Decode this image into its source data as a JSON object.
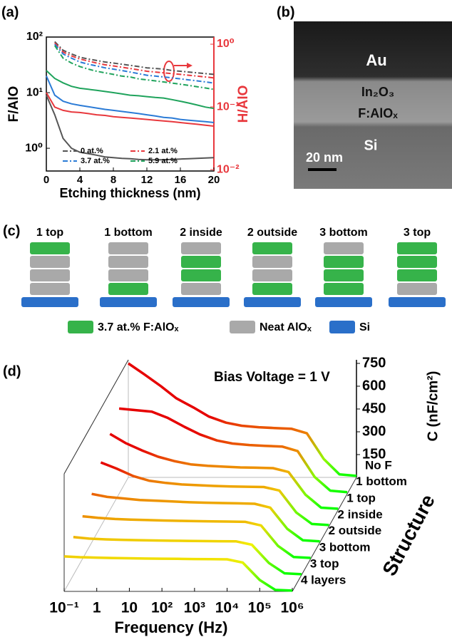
{
  "chart_data": [
    {
      "type": "line",
      "panel_label": "(a)",
      "xlabel": "Etching thickness (nm)",
      "ylabel": "F/AlO",
      "y2label": "H/AlO",
      "log_y": true,
      "log_y2": true,
      "legend": "lower",
      "x": [
        0,
        1,
        2,
        3,
        4,
        5,
        6,
        7,
        8,
        9,
        10,
        11,
        12,
        13,
        14,
        15,
        16,
        17,
        18,
        19,
        20
      ],
      "xlim": [
        0,
        20
      ],
      "xticks": [
        0,
        4,
        8,
        12,
        16,
        20
      ],
      "ylim": [
        0.39,
        100
      ],
      "yticks": [
        {
          "value": 1,
          "label": "10⁰"
        },
        {
          "value": 10,
          "label": "10¹"
        },
        {
          "value": 100,
          "label": "10²"
        }
      ],
      "y2lim": [
        0.0095,
        1.3
      ],
      "y2ticks": [
        {
          "value": 0.01,
          "label": "10⁻²"
        },
        {
          "value": 0.1,
          "label": "10⁻¹"
        },
        {
          "value": 1,
          "label": "10⁰"
        }
      ],
      "series": [
        {
          "color": "#555555",
          "values": [
            9,
            4,
            1.5,
            1.0,
            0.85,
            0.8,
            0.75,
            0.7,
            0.68,
            0.66,
            0.65,
            0.63,
            0.62,
            0.62,
            0.62,
            0.63,
            0.64,
            0.65,
            0.66,
            0.67,
            0.68
          ]
        },
        {
          "color": "#e8383d",
          "values": [
            10,
            5.5,
            4.8,
            4.5,
            4.4,
            4.2,
            4,
            3.9,
            3.7,
            3.6,
            3.5,
            3.4,
            3.3,
            3.2,
            3.1,
            3,
            2.9,
            2.8,
            2.7,
            2.6,
            2.5
          ]
        },
        {
          "color": "#2b7bd6",
          "values": [
            20,
            9,
            7,
            6.3,
            5.9,
            5.6,
            5.3,
            5,
            4.8,
            4.6,
            4.4,
            4.2,
            4,
            3.8,
            3.6,
            3.5,
            3.3,
            3.2,
            3.1,
            3,
            2.9
          ]
        },
        {
          "color": "#1fa35c",
          "values": [
            25,
            18,
            15,
            13,
            12,
            11.5,
            11,
            10.5,
            10,
            9.5,
            9,
            8.8,
            8.5,
            8.2,
            8,
            7.5,
            7,
            6.5,
            6,
            5.5,
            5.2
          ]
        },
        {
          "name": "0 at.%",
          "color": "#555555",
          "axis": "y2",
          "dash": "dash-dot",
          "values": [
            null,
            1.1,
            0.8,
            0.7,
            0.62,
            0.58,
            0.55,
            0.52,
            0.5,
            0.48,
            0.46,
            0.44,
            0.42,
            0.41,
            0.4,
            0.38,
            0.37,
            0.36,
            0.35,
            0.34,
            0.33
          ]
        },
        {
          "name": "2.1 at.%",
          "color": "#e8383d",
          "axis": "y2",
          "dash": "dash-dot",
          "values": [
            null,
            1.05,
            0.75,
            0.65,
            0.58,
            0.54,
            0.5,
            0.47,
            0.45,
            0.43,
            0.41,
            0.39,
            0.37,
            0.36,
            0.35,
            0.34,
            0.33,
            0.32,
            0.31,
            0.3,
            0.29
          ]
        },
        {
          "name": "3.7 at.%",
          "color": "#2b7bd6",
          "axis": "y2",
          "dash": "dash-dot",
          "values": [
            null,
            1.0,
            0.7,
            0.6,
            0.52,
            0.48,
            0.45,
            0.42,
            0.4,
            0.38,
            0.36,
            0.34,
            0.32,
            0.31,
            0.3,
            0.29,
            0.28,
            0.27,
            0.26,
            0.25,
            0.24
          ]
        },
        {
          "name": "5.9 at.%",
          "color": "#1fa35c",
          "axis": "y2",
          "dash": "dash-dot",
          "values": [
            null,
            0.95,
            0.6,
            0.5,
            0.44,
            0.4,
            0.37,
            0.35,
            0.33,
            0.31,
            0.3,
            0.28,
            0.27,
            0.26,
            0.25,
            0.24,
            0.23,
            0.22,
            0.21,
            0.2,
            0.19
          ]
        }
      ]
    },
    {
      "type": "waterfall",
      "panel_label": "(d)",
      "annotation": "Bias Voltage = 1 V",
      "xlabel": "Frequency (Hz)",
      "ylabel": "C (nF/cm²)",
      "zlabel": "Structure",
      "log_x": true,
      "x": [
        0.1,
        0.3,
        1,
        3,
        10,
        30,
        100,
        300,
        1000,
        3000,
        10000,
        30000,
        100000,
        300000,
        1000000
      ],
      "xlim": [
        0.1,
        1000000
      ],
      "xticks": [
        {
          "value": 0.1,
          "label": "10⁻¹"
        },
        1,
        10,
        {
          "value": 100,
          "label": "10²"
        },
        {
          "value": 1000,
          "label": "10³"
        },
        {
          "value": 10000,
          "label": "10⁴"
        },
        {
          "value": 100000,
          "label": "10⁵"
        },
        {
          "value": 1000000,
          "label": "10⁶"
        }
      ],
      "ylim": [
        0,
        750
      ],
      "yticks": [
        150,
        300,
        450,
        600,
        750
      ],
      "series": [
        {
          "name": "No F",
          "values": [
            750,
            680,
            600,
            520,
            460,
            400,
            360,
            340,
            330,
            325,
            320,
            290,
            120,
            20,
            10
          ]
        },
        {
          "name": "1 bottom",
          "values": [
            560,
            550,
            540,
            500,
            440,
            390,
            350,
            330,
            320,
            315,
            310,
            280,
            110,
            20,
            10
          ]
        },
        {
          "name": "1 top",
          "values": [
            500,
            440,
            390,
            350,
            320,
            300,
            290,
            285,
            280,
            278,
            275,
            250,
            100,
            15,
            8
          ]
        },
        {
          "name": "2 inside",
          "values": [
            420,
            380,
            330,
            300,
            285,
            275,
            270,
            265,
            262,
            260,
            258,
            235,
            90,
            15,
            8
          ]
        },
        {
          "name": "2 outside",
          "values": [
            320,
            300,
            290,
            280,
            275,
            270,
            265,
            262,
            260,
            258,
            255,
            230,
            90,
            15,
            8
          ]
        },
        {
          "name": "3 bottom",
          "values": [
            280,
            270,
            262,
            258,
            255,
            252,
            250,
            248,
            246,
            245,
            243,
            220,
            85,
            12,
            6
          ]
        },
        {
          "name": "3 top",
          "values": [
            250,
            240,
            235,
            232,
            230,
            228,
            226,
            225,
            224,
            223,
            222,
            200,
            80,
            12,
            6
          ]
        },
        {
          "name": "4 layers",
          "values": [
            230,
            225,
            222,
            220,
            218,
            216,
            215,
            214,
            213,
            212,
            211,
            190,
            75,
            10,
            5
          ]
        }
      ]
    }
  ],
  "tem_image": {
    "panel_label": "(b)",
    "layers": [
      "Au",
      "In₂O₃",
      "F:AlOₓ",
      "Si"
    ],
    "scale_bar": "20 nm"
  },
  "stack_diagram": {
    "panel_label": "(c)",
    "stacks": [
      "1 top",
      "1 bottom",
      "2 inside",
      "2 outside",
      "3 bottom",
      "3 top"
    ],
    "legend": [
      "3.7 at.% F:AlOₓ",
      "Neat AlOₓ",
      "Si"
    ]
  }
}
